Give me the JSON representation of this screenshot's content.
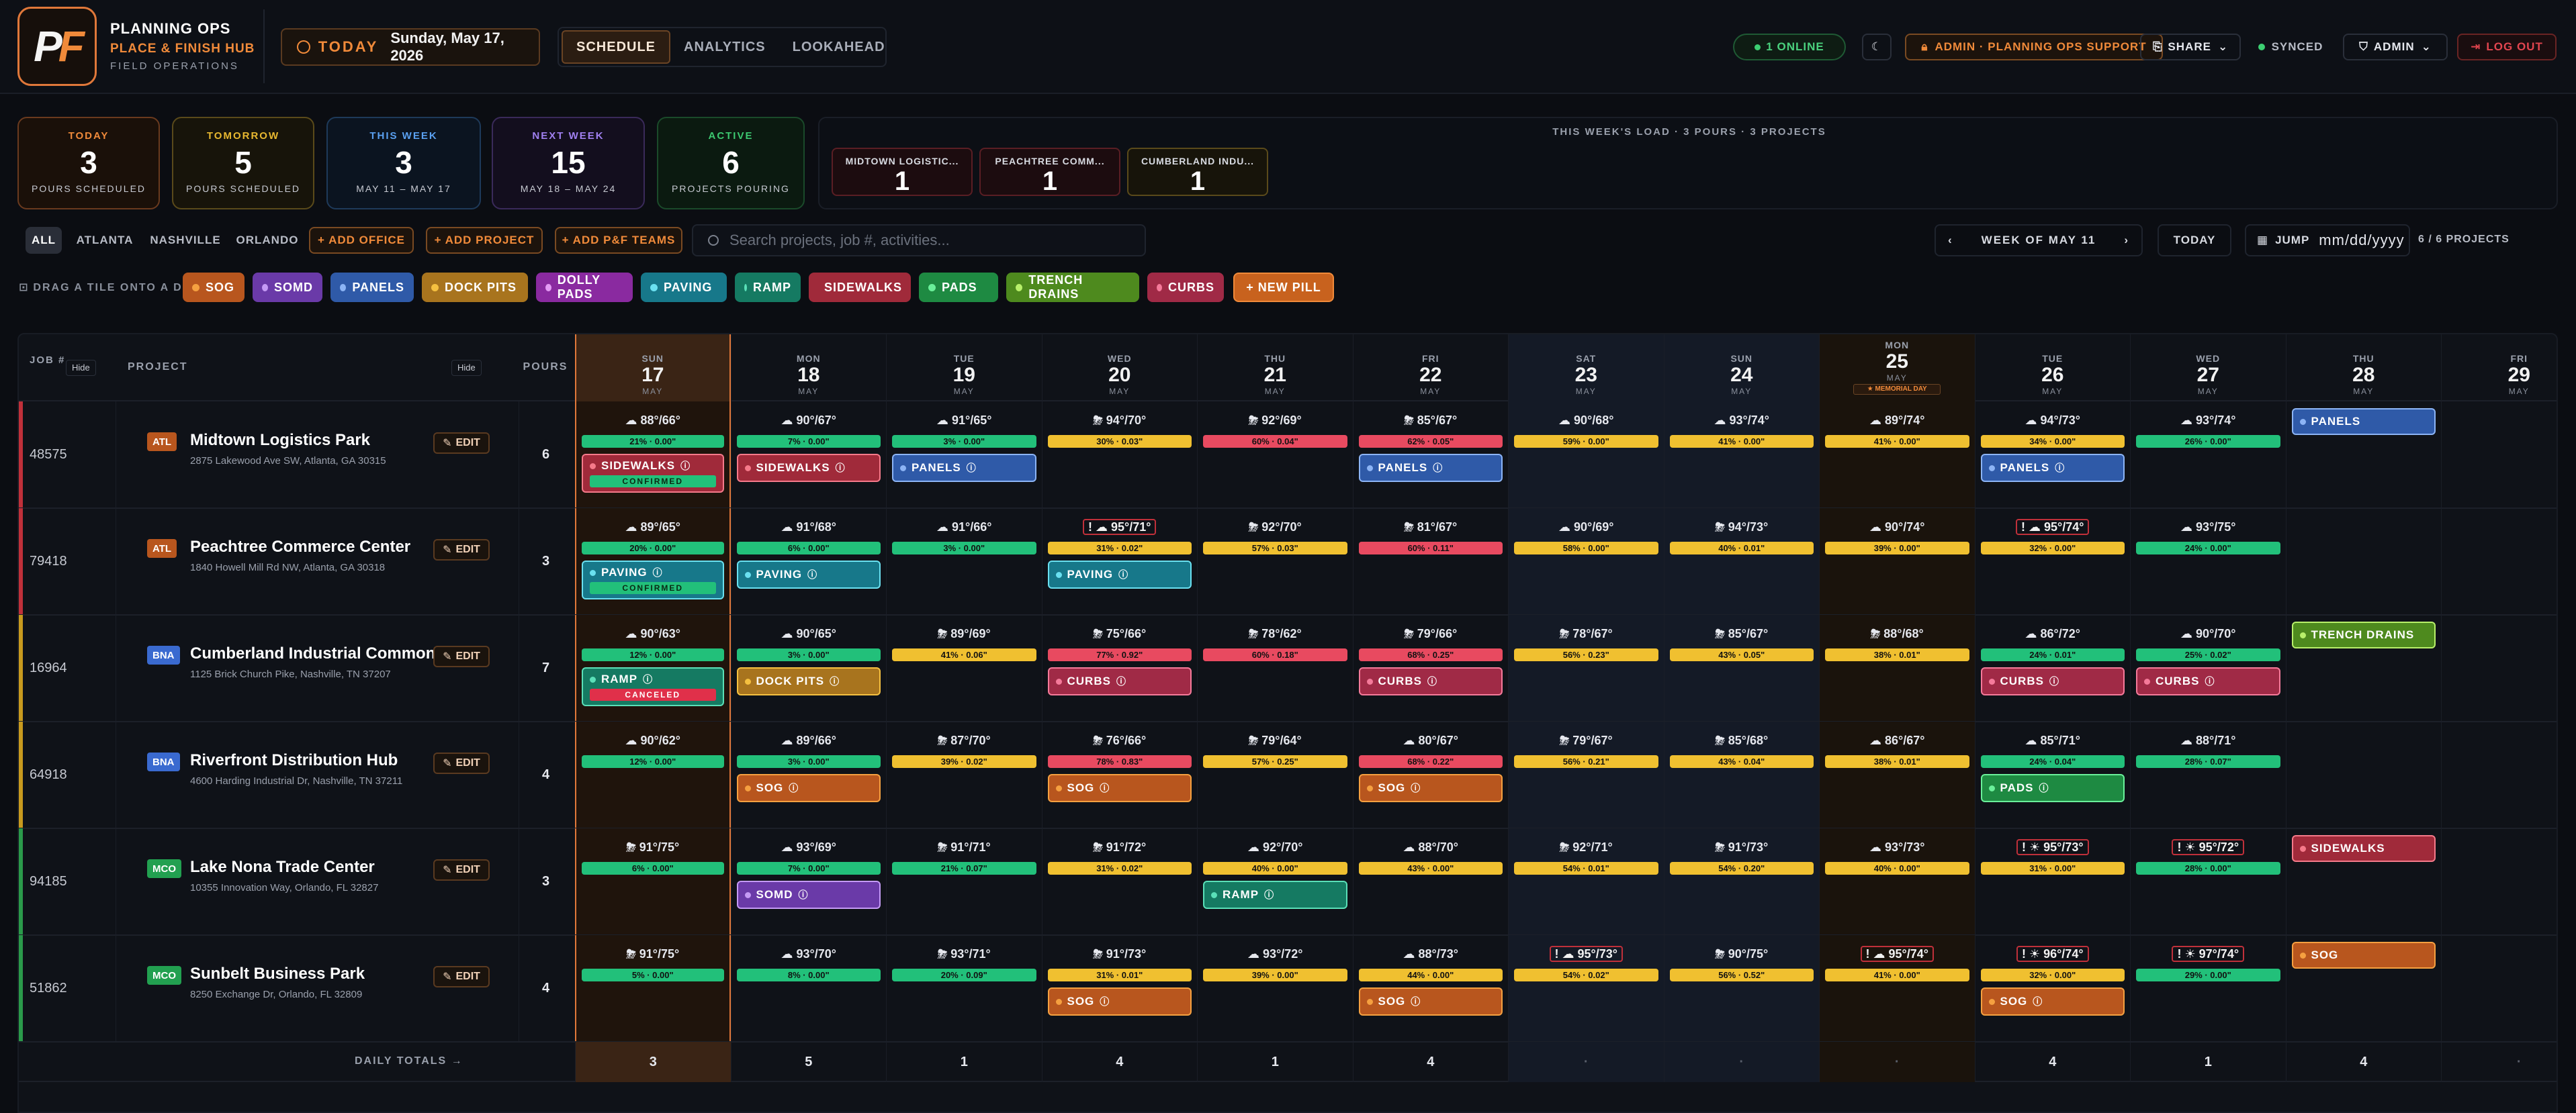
{
  "brand": {
    "title": "PLANNING OPS",
    "subtitle": "PLACE & FINISH HUB",
    "section": "FIELD OPERATIONS",
    "logo_p": "P",
    "logo_f": "F"
  },
  "today": {
    "label": "TODAY",
    "date": "Sunday, May 17, 2026"
  },
  "tabs": [
    "SCHEDULE",
    "ANALYTICS",
    "LOOKAHEAD"
  ],
  "header": {
    "online": "1 ONLINE",
    "admin_role": "ADMIN · PLANNING OPS SUPPORT",
    "share": "SHARE",
    "synced": "SYNCED",
    "admin": "ADMIN",
    "logout": "LOG OUT"
  },
  "stats": [
    {
      "k": "TODAY",
      "v": "3",
      "s": "POURS SCHEDULED"
    },
    {
      "k": "TOMORROW",
      "v": "5",
      "s": "POURS SCHEDULED"
    },
    {
      "k": "THIS WEEK",
      "v": "3",
      "s": "MAY 11 – MAY 17"
    },
    {
      "k": "NEXT WEEK",
      "v": "15",
      "s": "MAY 18 – MAY 24"
    },
    {
      "k": "ACTIVE",
      "v": "6",
      "s": "PROJECTS POURING"
    }
  ],
  "load": {
    "title": "THIS WEEK'S LOAD · 3 POURS · 3 PROJECTS",
    "cards": [
      {
        "n": "MIDTOWN LOGISTIC...",
        "c": "1"
      },
      {
        "n": "PEACHTREE COMM...",
        "c": "1"
      },
      {
        "n": "CUMBERLAND INDU...",
        "c": "1"
      }
    ]
  },
  "offices": [
    "ALL",
    "ATLANTA",
    "NASHVILLE",
    "ORLANDO"
  ],
  "actions": [
    "+ ADD OFFICE",
    "+ ADD PROJECT",
    "+ ADD P&F TEAMS"
  ],
  "search": {
    "placeholder": "Search projects, job #, activities..."
  },
  "weeknav": {
    "label": "WEEK OF MAY 11",
    "today": "TODAY",
    "jump": "JUMP",
    "date": "mm/dd/yyyy",
    "count": "6 / 6 PROJECTS"
  },
  "drag_hint": "DRAG A TILE ONTO A DAY",
  "pills": [
    {
      "label": "SOG",
      "color": "#b8561e",
      "dot": "#f5a040"
    },
    {
      "label": "SOMD",
      "color": "#6a3aa8",
      "dot": "#c49af5"
    },
    {
      "label": "PANELS",
      "color": "#2f5aa8",
      "dot": "#8cb4f5"
    },
    {
      "label": "DOCK PITS",
      "color": "#a8741e",
      "dot": "#f5c040"
    },
    {
      "label": "DOLLY PADS",
      "color": "#8a2aa0",
      "dot": "#e49af5"
    },
    {
      "label": "PAVING",
      "color": "#17788a",
      "dot": "#6ae0f0"
    },
    {
      "label": "RAMP",
      "color": "#157a62",
      "dot": "#5ae0b8"
    },
    {
      "label": "SIDEWALKS",
      "color": "#a02a3a",
      "dot": "#f57a8a"
    },
    {
      "label": "PADS",
      "color": "#1e8a42",
      "dot": "#6af09a"
    },
    {
      "label": "TRENCH DRAINS",
      "color": "#4e8a1e",
      "dot": "#b8f06a"
    },
    {
      "label": "CURBS",
      "color": "#a02a46",
      "dot": "#f57a9a"
    },
    {
      "label": "+ NEW PILL",
      "color": "#c8621e",
      "dot": ""
    }
  ],
  "grid_headers": {
    "job": "JOB #",
    "hide": "Hide",
    "project": "PROJECT",
    "pours": "POURS",
    "totals_label": "DAILY TOTALS →"
  },
  "days": [
    {
      "dw": "SUN",
      "dn": "17",
      "mo": "MAY",
      "kind": "today"
    },
    {
      "dw": "MON",
      "dn": "18",
      "mo": "MAY",
      "kind": ""
    },
    {
      "dw": "TUE",
      "dn": "19",
      "mo": "MAY",
      "kind": ""
    },
    {
      "dw": "WED",
      "dn": "20",
      "mo": "MAY",
      "kind": ""
    },
    {
      "dw": "THU",
      "dn": "21",
      "mo": "MAY",
      "kind": ""
    },
    {
      "dw": "FRI",
      "dn": "22",
      "mo": "MAY",
      "kind": ""
    },
    {
      "dw": "SAT",
      "dn": "23",
      "mo": "MAY",
      "kind": "weekend"
    },
    {
      "dw": "SUN",
      "dn": "24",
      "mo": "MAY",
      "kind": "weekend"
    },
    {
      "dw": "MON",
      "dn": "25",
      "mo": "MAY",
      "kind": "holiday",
      "note": "★ MEMORIAL DAY"
    },
    {
      "dw": "TUE",
      "dn": "26",
      "mo": "MAY",
      "kind": ""
    },
    {
      "dw": "WED",
      "dn": "27",
      "mo": "MAY",
      "kind": ""
    },
    {
      "dw": "THU",
      "dn": "28",
      "mo": "MAY",
      "kind": ""
    },
    {
      "dw": "FRI",
      "dn": "29",
      "mo": "MAY",
      "kind": ""
    }
  ],
  "projects": [
    {
      "job": "48575",
      "office": "ATL",
      "name": "Midtown Logistics Park",
      "addr": "2875 Lakewood Ave SW, Atlanta, GA 30315",
      "pours": "6",
      "edit": "EDIT",
      "bar": "#c0303a",
      "cells": [
        {
          "w": "☁ 88°/66°",
          "r": "21% · 0.00\"",
          "rc": "g",
          "p": "SIDEWALKS",
          "t": "CONFIRMED"
        },
        {
          "w": "☁ 90°/67°",
          "r": "7% · 0.00\"",
          "rc": "g",
          "p": "SIDEWALKS"
        },
        {
          "w": "☁ 91°/65°",
          "r": "3% · 0.00\"",
          "rc": "g",
          "p": "PANELS"
        },
        {
          "w": "⛈ 94°/70°",
          "r": "30% · 0.03\"",
          "rc": "y"
        },
        {
          "w": "⛈ 92°/69°",
          "r": "60% · 0.04\"",
          "rc": "r"
        },
        {
          "w": "⛈ 85°/67°",
          "r": "62% · 0.05\"",
          "rc": "r",
          "p": "PANELS"
        },
        {
          "w": "☁ 90°/68°",
          "r": "59% · 0.00\"",
          "rc": "y"
        },
        {
          "w": "☁ 93°/74°",
          "r": "41% · 0.00\"",
          "rc": "y"
        },
        {
          "w": "☁ 89°/74°",
          "r": "41% · 0.00\"",
          "rc": "y"
        },
        {
          "w": "☁ 94°/73°",
          "r": "34% · 0.00\"",
          "rc": "y",
          "p": "PANELS"
        },
        {
          "w": "☁ 93°/74°",
          "r": "26% · 0.00\"",
          "rc": "g"
        },
        {
          "p2": "PANELS"
        },
        {}
      ]
    },
    {
      "job": "79418",
      "office": "ATL",
      "name": "Peachtree Commerce Center",
      "addr": "1840 Howell Mill Rd NW, Atlanta, GA 30318",
      "pours": "3",
      "edit": "EDIT",
      "bar": "#c0303a",
      "cells": [
        {
          "w": "☁ 89°/65°",
          "r": "20% · 0.00\"",
          "rc": "g",
          "p": "PAVING",
          "t": "CONFIRMED"
        },
        {
          "w": "☁ 91°/68°",
          "r": "6% · 0.00\"",
          "rc": "g",
          "p": "PAVING"
        },
        {
          "w": "☁ 91°/66°",
          "r": "3% · 0.00\"",
          "rc": "g"
        },
        {
          "w": "! ☁ 95°/71°",
          "r": "31% · 0.02\"",
          "rc": "y",
          "p": "PAVING"
        },
        {
          "w": "⛈ 92°/70°",
          "r": "57% · 0.03\"",
          "rc": "y"
        },
        {
          "w": "⛈ 81°/67°",
          "r": "60% · 0.11\"",
          "rc": "r"
        },
        {
          "w": "☁ 90°/69°",
          "r": "58% · 0.00\"",
          "rc": "y"
        },
        {
          "w": "⛈ 94°/73°",
          "r": "40% · 0.01\"",
          "rc": "y"
        },
        {
          "w": "☁ 90°/74°",
          "r": "39% · 0.00\"",
          "rc": "y"
        },
        {
          "w": "! ☁ 95°/74°",
          "r": "32% · 0.00\"",
          "rc": "y"
        },
        {
          "w": "☁ 93°/75°",
          "r": "24% · 0.00\"",
          "rc": "g"
        },
        {},
        {}
      ]
    },
    {
      "job": "16964",
      "office": "BNA",
      "name": "Cumberland Industrial Commons",
      "addr": "1125 Brick Church Pike, Nashville, TN 37207",
      "pours": "7",
      "edit": "EDIT",
      "bar": "#c89a1e",
      "cells": [
        {
          "w": "☁ 90°/63°",
          "r": "12% · 0.00\"",
          "rc": "g",
          "p": "RAMP",
          "t": "CANCELED"
        },
        {
          "w": "☁ 90°/65°",
          "r": "3% · 0.00\"",
          "rc": "g",
          "p": "DOCK PITS"
        },
        {
          "w": "⛈ 89°/69°",
          "r": "41% · 0.06\"",
          "rc": "y"
        },
        {
          "w": "⛈ 75°/66°",
          "r": "77% · 0.92\"",
          "rc": "r",
          "p": "CURBS"
        },
        {
          "w": "⛈ 78°/62°",
          "r": "60% · 0.18\"",
          "rc": "r"
        },
        {
          "w": "⛈ 79°/66°",
          "r": "68% · 0.25\"",
          "rc": "r",
          "p": "CURBS"
        },
        {
          "w": "⛈ 78°/67°",
          "r": "56% · 0.23\"",
          "rc": "y"
        },
        {
          "w": "⛈ 85°/67°",
          "r": "43% · 0.05\"",
          "rc": "y"
        },
        {
          "w": "⛈ 88°/68°",
          "r": "38% · 0.01\"",
          "rc": "y"
        },
        {
          "w": "☁ 86°/72°",
          "r": "24% · 0.01\"",
          "rc": "g",
          "p": "CURBS"
        },
        {
          "w": "☁ 90°/70°",
          "r": "25% · 0.02\"",
          "rc": "g",
          "p": "CURBS"
        },
        {
          "p2": "TRENCH DRAINS"
        },
        {}
      ]
    },
    {
      "job": "64918",
      "office": "BNA",
      "name": "Riverfront Distribution Hub",
      "addr": "4600 Harding Industrial Dr, Nashville, TN 37211",
      "pours": "4",
      "edit": "EDIT",
      "bar": "#c89a1e",
      "cells": [
        {
          "w": "☁ 90°/62°",
          "r": "12% · 0.00\"",
          "rc": "g"
        },
        {
          "w": "☁ 89°/66°",
          "r": "3% · 0.00\"",
          "rc": "g",
          "p": "SOG"
        },
        {
          "w": "⛈ 87°/70°",
          "r": "39% · 0.02\"",
          "rc": "y"
        },
        {
          "w": "⛈ 76°/66°",
          "r": "78% · 0.83\"",
          "rc": "r",
          "p": "SOG"
        },
        {
          "w": "⛈ 79°/64°",
          "r": "57% · 0.25\"",
          "rc": "y"
        },
        {
          "w": "☁ 80°/67°",
          "r": "68% · 0.22\"",
          "rc": "r",
          "p": "SOG"
        },
        {
          "w": "⛈ 79°/67°",
          "r": "56% · 0.21\"",
          "rc": "y"
        },
        {
          "w": "⛈ 85°/68°",
          "r": "43% · 0.04\"",
          "rc": "y"
        },
        {
          "w": "☁ 86°/67°",
          "r": "38% · 0.01\"",
          "rc": "y"
        },
        {
          "w": "☁ 85°/71°",
          "r": "24% · 0.04\"",
          "rc": "g",
          "p": "PADS"
        },
        {
          "w": "☁ 88°/71°",
          "r": "28% · 0.07\"",
          "rc": "g"
        },
        {},
        {}
      ]
    },
    {
      "job": "94185",
      "office": "MCO",
      "name": "Lake Nona Trade Center",
      "addr": "10355 Innovation Way, Orlando, FL 32827",
      "pours": "3",
      "edit": "EDIT",
      "bar": "#2a9a4a",
      "cells": [
        {
          "w": "⛈ 91°/75°",
          "r": "6% · 0.00\"",
          "rc": "g"
        },
        {
          "w": "☁ 93°/69°",
          "r": "7% · 0.00\"",
          "rc": "g",
          "p": "SOMD"
        },
        {
          "w": "⛈ 91°/71°",
          "r": "21% · 0.07\"",
          "rc": "g"
        },
        {
          "w": "⛈ 91°/72°",
          "r": "31% · 0.02\"",
          "rc": "y"
        },
        {
          "w": "☁ 92°/70°",
          "r": "40% · 0.00\"",
          "rc": "y",
          "p": "RAMP"
        },
        {
          "w": "☁ 88°/70°",
          "r": "43% · 0.00\"",
          "rc": "y"
        },
        {
          "w": "⛈ 92°/71°",
          "r": "54% · 0.01\"",
          "rc": "y"
        },
        {
          "w": "⛈ 91°/73°",
          "r": "54% · 0.20\"",
          "rc": "y"
        },
        {
          "w": "☁ 93°/73°",
          "r": "40% · 0.00\"",
          "rc": "y"
        },
        {
          "w": "! ☀ 95°/73°",
          "r": "31% · 0.00\"",
          "rc": "y"
        },
        {
          "w": "! ☀ 95°/72°",
          "r": "28% · 0.00\"",
          "rc": "g"
        },
        {
          "p2": "SIDEWALKS"
        },
        {}
      ]
    },
    {
      "job": "51862",
      "office": "MCO",
      "name": "Sunbelt Business Park",
      "addr": "8250 Exchange Dr, Orlando, FL 32809",
      "pours": "4",
      "edit": "EDIT",
      "bar": "#2a9a4a",
      "cells": [
        {
          "w": "⛈ 91°/75°",
          "r": "5% · 0.00\"",
          "rc": "g"
        },
        {
          "w": "☁ 93°/70°",
          "r": "8% · 0.00\"",
          "rc": "g"
        },
        {
          "w": "⛈ 93°/71°",
          "r": "20% · 0.09\"",
          "rc": "g"
        },
        {
          "w": "⛈ 91°/73°",
          "r": "31% · 0.01\"",
          "rc": "y",
          "p": "SOG"
        },
        {
          "w": "☁ 93°/72°",
          "r": "39% · 0.00\"",
          "rc": "y"
        },
        {
          "w": "☁ 88°/73°",
          "r": "44% · 0.00\"",
          "rc": "y",
          "p": "SOG"
        },
        {
          "w": "! ☁ 95°/73°",
          "r": "54% · 0.02\"",
          "rc": "y"
        },
        {
          "w": "⛈ 90°/75°",
          "r": "56% · 0.52\"",
          "rc": "y"
        },
        {
          "w": "! ☁ 95°/74°",
          "r": "41% · 0.00\"",
          "rc": "y"
        },
        {
          "w": "! ☀ 96°/74°",
          "r": "32% · 0.00\"",
          "rc": "y",
          "p": "SOG"
        },
        {
          "w": "! ☀ 97°/74°",
          "r": "29% · 0.00\"",
          "rc": "g"
        },
        {
          "p2": "SOG"
        },
        {}
      ]
    }
  ],
  "totals": [
    "3",
    "5",
    "1",
    "4",
    "1",
    "4",
    "·",
    "·",
    "·",
    "4",
    "1",
    "4",
    "·"
  ]
}
